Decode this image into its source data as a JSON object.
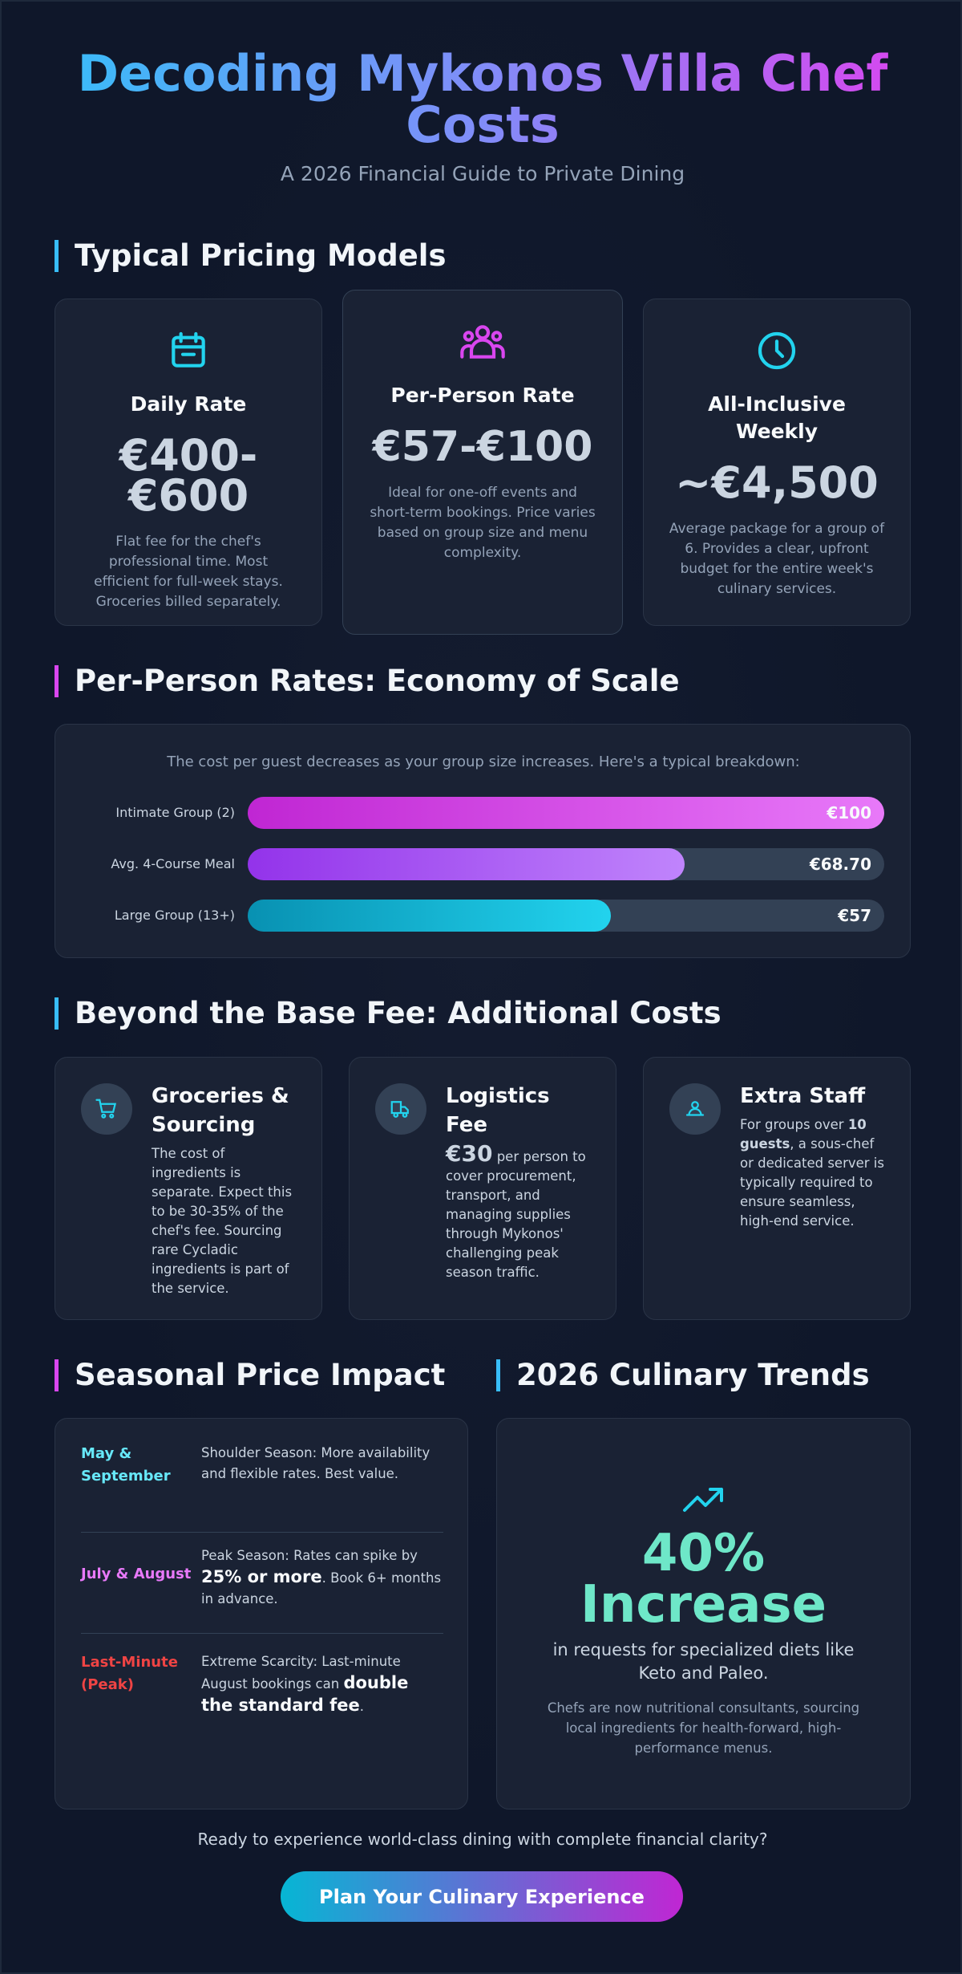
{
  "header": {
    "title": "Decoding Mykonos Villa Chef Costs",
    "subtitle": "A 2026 Financial Guide to Private Dining"
  },
  "pricing": {
    "heading": "Typical Pricing Models",
    "cards": [
      {
        "title": "Daily Rate",
        "price": "€400-€600",
        "description": "Flat fee for the chef's professional time. Most efficient for full-week stays. Groceries billed separately."
      },
      {
        "title": "Per-Person Rate",
        "price": "€57-€100",
        "description": "Ideal for one-off events and short-term bookings. Price varies based on group size and menu complexity."
      },
      {
        "title": "All-Inclusive Weekly",
        "price": "~€4,500",
        "description": "Average package for a group of 6. Provides a clear, upfront budget for the entire week's culinary services."
      }
    ]
  },
  "scale": {
    "heading": "Per-Person Rates: Economy of Scale",
    "intro": "The cost per guest decreases as your group size increases. Here's a typical breakdown:",
    "categories": [
      "Intimate Group (2)",
      "Avg. 4-Course Meal",
      "Large Group (13+)"
    ],
    "values": [
      100,
      68.7,
      57
    ],
    "value_labels": [
      "€100",
      "€68.70",
      "€57"
    ]
  },
  "additional": {
    "heading": "Beyond the Base Fee: Additional Costs",
    "cards": [
      {
        "title": "Groceries & Sourcing",
        "text": [
          {
            "text": "The cost of ingredients is separate. Expect this to be 30-35% of the chef's fee. Sourcing rare Cycladic ingredients is part of the service.",
            "strong": false
          }
        ]
      },
      {
        "title": "Logistics Fee",
        "text": [
          {
            "text": "€30",
            "strong": true
          },
          {
            "text": " per person to cover procurement, transport, and managing supplies through Mykonos' challenging peak season traffic.",
            "strong": false
          }
        ]
      },
      {
        "title": "Extra Staff",
        "text": [
          {
            "text": "For groups over ",
            "strong": false
          },
          {
            "text": "10 guests",
            "strong": true
          },
          {
            "text": ", a sous-chef or dedicated server is typically required to ensure seamless, high-end service.",
            "strong": false
          }
        ]
      }
    ]
  },
  "seasonal": {
    "heading": "Seasonal Price Impact",
    "rows": [
      {
        "label": "May & September",
        "text": [
          {
            "text": "Shoulder Season: More availability and flexible rates. Best value.",
            "strong": false
          }
        ]
      },
      {
        "label": "July & August",
        "text": [
          {
            "text": "Peak Season: Rates can spike by ",
            "strong": false
          },
          {
            "text": "25% or more",
            "strong": true
          },
          {
            "text": ". Book 6+ months in advance.",
            "strong": false
          }
        ]
      },
      {
        "label": "Last-Minute (Peak)",
        "text": [
          {
            "text": "Extreme Scarcity: Last-minute August bookings can ",
            "strong": false
          },
          {
            "text": "double the standard fee",
            "strong": true
          },
          {
            "text": ".",
            "strong": false
          }
        ]
      }
    ]
  },
  "trends": {
    "heading": "2026 Culinary Trends",
    "stat": "40% Increase",
    "caption": "in requests for specialized diets like Keto and Paleo.",
    "note": "Chefs are now nutritional consultants, sourcing local ingredients for health-forward, high-performance menus."
  },
  "cta": {
    "text": "Ready to experience world-class dining with complete financial clarity?",
    "button": "Plan Your Culinary Experience"
  }
}
